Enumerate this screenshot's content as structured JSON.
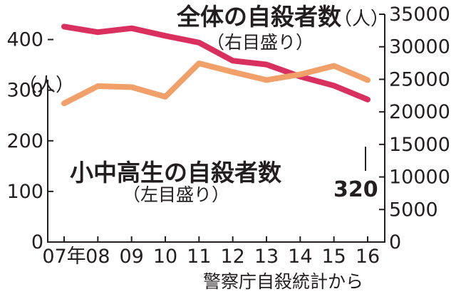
{
  "chart_data": {
    "type": "line",
    "categories": [
      "07年",
      "08",
      "09",
      "10",
      "11",
      "12",
      "13",
      "14",
      "15",
      "16"
    ],
    "series": [
      {
        "name": "全体の自殺者数",
        "subtitle": "（右目盛り）",
        "axis": "right",
        "color": "#d9305f",
        "values": [
          33093,
          32249,
          32845,
          31690,
          30651,
          27858,
          27283,
          25427,
          24025,
          21897
        ]
      },
      {
        "name": "小中高生の自殺者数",
        "subtitle": "（左目盛り）",
        "axis": "left",
        "color": "#f2a06a",
        "values": [
          274,
          308,
          306,
          287,
          353,
          336,
          320,
          331,
          348,
          320
        ]
      }
    ],
    "left_axis": {
      "unit": "（人）",
      "ylim": [
        0,
        450
      ],
      "tick_values": [
        0,
        100,
        200,
        300,
        400
      ],
      "tick_labels": [
        "0",
        "100",
        "200",
        "300",
        "400"
      ]
    },
    "right_axis": {
      "unit": "（人）",
      "ylim": [
        0,
        35000
      ],
      "tick_values": [
        0,
        5000,
        10000,
        15000,
        20000,
        25000,
        30000,
        35000
      ],
      "tick_labels": [
        "0",
        "5000",
        "10000",
        "15000",
        "20000",
        "25000",
        "30000",
        "35000"
      ]
    },
    "annotations": [
      {
        "text": "320",
        "category": "16",
        "series": "小中高生の自殺者数"
      }
    ],
    "source": "警察庁自殺統計から",
    "grid": false,
    "legend": "inline labels"
  }
}
